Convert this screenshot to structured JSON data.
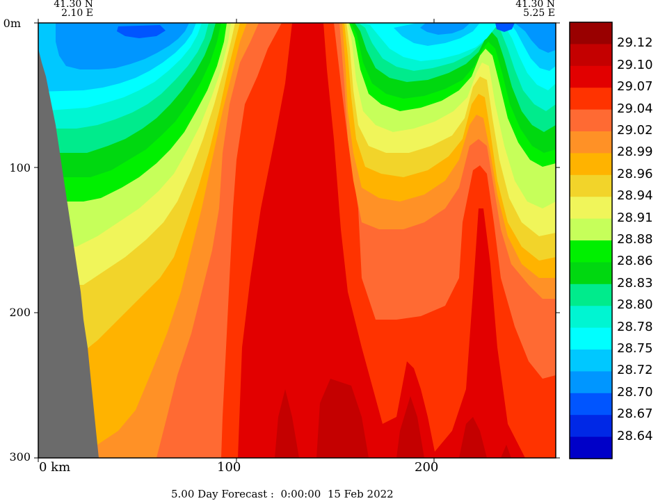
{
  "chart_data": {
    "type": "heatmap",
    "title": "",
    "xlabel": "",
    "ylabel": "",
    "corner_left": {
      "lat": "41.30 N",
      "lon": "2.10 E"
    },
    "corner_right": {
      "lat": "41.30 N",
      "lon": "5.25 E"
    },
    "x_ticks": [
      "0 km",
      "100",
      "200"
    ],
    "x_tick_values": [
      0,
      100,
      200
    ],
    "xlim": [
      0,
      262
    ],
    "y_ticks": [
      "0m",
      "100",
      "200",
      "300"
    ],
    "y_tick_values": [
      0,
      100,
      200,
      300
    ],
    "ylim": [
      300,
      0
    ],
    "colorbar_labels": [
      "29.12",
      "29.10",
      "29.07",
      "29.04",
      "29.02",
      "28.99",
      "28.96",
      "28.94",
      "28.91",
      "28.88",
      "28.86",
      "28.83",
      "28.80",
      "28.78",
      "28.75",
      "28.72",
      "28.70",
      "28.67",
      "28.64"
    ],
    "colorbar_colors": [
      "#990000",
      "#c40000",
      "#e20000",
      "#ff3300",
      "#ff6a33",
      "#ff9126",
      "#ffb300",
      "#f2d42a",
      "#f0f55a",
      "#c6ff5a",
      "#00f000",
      "#00d810",
      "#00eb8c",
      "#00f5d2",
      "#00ffff",
      "#00c8ff",
      "#0096ff",
      "#0055ff",
      "#0028e6",
      "#0000c8"
    ],
    "land_color": "#6b6b6b",
    "footer": "5.00 Day Forecast :  0:00:00  15 Feb 2022"
  }
}
